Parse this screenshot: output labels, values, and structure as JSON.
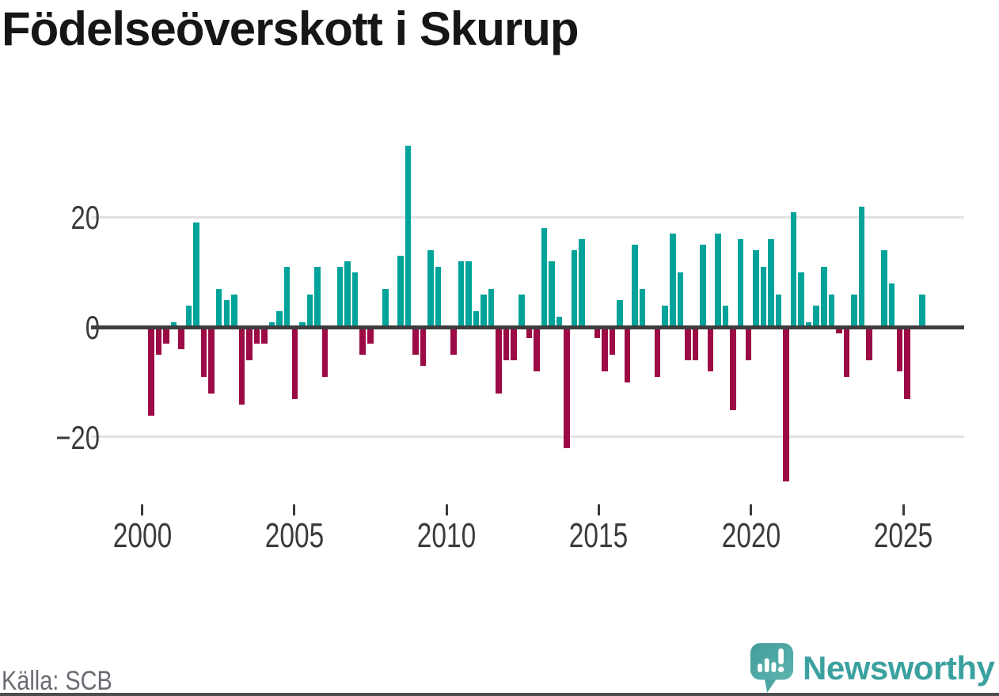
{
  "title": "Födelseöverskott i Skurup",
  "source": {
    "label": "Källa: SCB"
  },
  "branding": {
    "name": "Newsworthy",
    "icon": "newsworthy-speech-bubble-chart-icon"
  },
  "colors": {
    "positive": "#00a39a",
    "negative": "#9c0b45",
    "grid": "#e2e2e2",
    "zero_line": "#3d3d3d",
    "axis_text": "#3b3b3b",
    "source_text": "#6b6b73",
    "brand_teal": "#3ba19f",
    "background": "#ffffff"
  },
  "chart_data": {
    "type": "bar",
    "title": "Födelseöverskott i Skurup",
    "x_tick_labels": [
      "2000",
      "2005",
      "2010",
      "2015",
      "2020",
      "2025"
    ],
    "y_ticks": [
      {
        "label": "20",
        "value": 20
      },
      {
        "label": "0",
        "value": 0
      },
      {
        "label": "−20",
        "value": -20
      }
    ],
    "ylim": [
      -30,
      35
    ],
    "grid": "horizontal-at-20-and-minus-20",
    "legend": "none",
    "quarters": [
      "2000 Q1",
      "2000 Q2",
      "2000 Q3",
      "2000 Q4",
      "2001 Q1",
      "2001 Q2",
      "2001 Q3",
      "2001 Q4",
      "2002 Q1",
      "2002 Q2",
      "2002 Q3",
      "2002 Q4",
      "2003 Q1",
      "2003 Q2",
      "2003 Q3",
      "2003 Q4",
      "2004 Q1",
      "2004 Q2",
      "2004 Q3",
      "2004 Q4",
      "2005 Q1",
      "2005 Q2",
      "2005 Q3",
      "2005 Q4",
      "2006 Q1",
      "2006 Q2",
      "2006 Q3",
      "2006 Q4",
      "2007 Q1",
      "2007 Q2",
      "2007 Q3",
      "2007 Q4",
      "2008 Q1",
      "2008 Q2",
      "2008 Q3",
      "2008 Q4",
      "2009 Q1",
      "2009 Q2",
      "2009 Q3",
      "2009 Q4",
      "2010 Q1",
      "2010 Q2",
      "2010 Q3",
      "2010 Q4",
      "2011 Q1",
      "2011 Q2",
      "2011 Q3",
      "2011 Q4",
      "2012 Q1",
      "2012 Q2",
      "2012 Q3",
      "2012 Q4",
      "2013 Q1",
      "2013 Q2",
      "2013 Q3",
      "2013 Q4",
      "2014 Q1",
      "2014 Q2",
      "2014 Q3",
      "2014 Q4",
      "2015 Q1",
      "2015 Q2",
      "2015 Q3",
      "2015 Q4",
      "2016 Q1",
      "2016 Q2",
      "2016 Q3",
      "2016 Q4",
      "2017 Q1",
      "2017 Q2",
      "2017 Q3",
      "2017 Q4",
      "2018 Q1",
      "2018 Q2",
      "2018 Q3",
      "2018 Q4",
      "2019 Q1",
      "2019 Q2",
      "2019 Q3",
      "2019 Q4",
      "2020 Q1",
      "2020 Q2",
      "2020 Q3",
      "2020 Q4",
      "2021 Q1",
      "2021 Q2",
      "2021 Q3",
      "2021 Q4",
      "2022 Q1",
      "2022 Q2",
      "2022 Q3",
      "2022 Q4",
      "2023 Q1",
      "2023 Q2",
      "2023 Q3",
      "2023 Q4",
      "2024 Q1",
      "2024 Q2",
      "2024 Q3",
      "2024 Q4",
      "2025 Q1",
      "2025 Q2",
      "2025 Q3"
    ],
    "values": [
      -16,
      -5,
      -3,
      1,
      -4,
      4,
      19,
      -9,
      -12,
      7,
      5,
      6,
      -14,
      -6,
      -3,
      -3,
      1,
      3,
      11,
      -13,
      1,
      6,
      11,
      -9,
      0,
      11,
      12,
      10,
      -5,
      -3,
      0,
      7,
      0,
      13,
      33,
      -5,
      -7,
      14,
      11,
      0,
      -5,
      12,
      12,
      3,
      6,
      7,
      -12,
      -6,
      -6,
      6,
      -2,
      -8,
      18,
      12,
      2,
      -22,
      14,
      16,
      0,
      -2,
      -8,
      -5,
      5,
      -10,
      15,
      7,
      0,
      -9,
      4,
      17,
      10,
      -6,
      -6,
      15,
      -8,
      17,
      4,
      -15,
      16,
      -6,
      14,
      11,
      16,
      6,
      -28,
      21,
      10,
      1,
      4,
      11,
      6,
      -1,
      -9,
      6,
      22,
      -6,
      0,
      14,
      8,
      -8,
      -13,
      0,
      6
    ],
    "positive_color": "#00a39a",
    "negative_color": "#9c0b45"
  }
}
